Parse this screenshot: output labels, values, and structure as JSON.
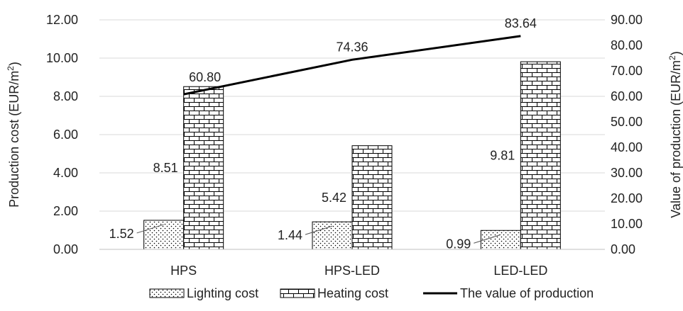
{
  "chart_data": {
    "type": "bar",
    "categories": [
      "HPS",
      "HPS-LED",
      "LED-LED"
    ],
    "series": [
      {
        "name": "Lighting cost",
        "kind": "bar",
        "axis": "left",
        "pattern": "dots",
        "values": [
          1.52,
          1.44,
          0.99
        ],
        "labels": [
          "1.52",
          "1.44",
          "0.99"
        ]
      },
      {
        "name": "Heating cost",
        "kind": "bar",
        "axis": "left",
        "pattern": "bricks",
        "values": [
          8.51,
          5.42,
          9.81
        ],
        "labels": [
          "8.51",
          "5.42",
          "9.81"
        ]
      },
      {
        "name": "The value of production",
        "kind": "line",
        "axis": "right",
        "values": [
          60.8,
          74.36,
          83.64
        ],
        "labels": [
          "60.80",
          "74.36",
          "83.64"
        ]
      }
    ],
    "ylabel_left": {
      "pre": "Production cost (EUR/m",
      "sup": "2",
      "post": ")"
    },
    "ylabel_right": {
      "pre": "Value of production (EUR/m",
      "sup": "2",
      "post": ")"
    },
    "ylim_left": [
      0,
      12
    ],
    "ylim_right": [
      0,
      90
    ],
    "yticks_left": [
      "0.00",
      "2.00",
      "4.00",
      "6.00",
      "8.00",
      "10.00",
      "12.00"
    ],
    "yticks_right": [
      "0.00",
      "10.00",
      "20.00",
      "30.00",
      "40.00",
      "50.00",
      "60.00",
      "70.00",
      "80.00",
      "90.00"
    ],
    "legend_position": "bottom",
    "grid": "horizontal",
    "colors": {
      "line": "#000000",
      "grid": "#d9d9d9",
      "bar_outline": "#000000"
    }
  }
}
